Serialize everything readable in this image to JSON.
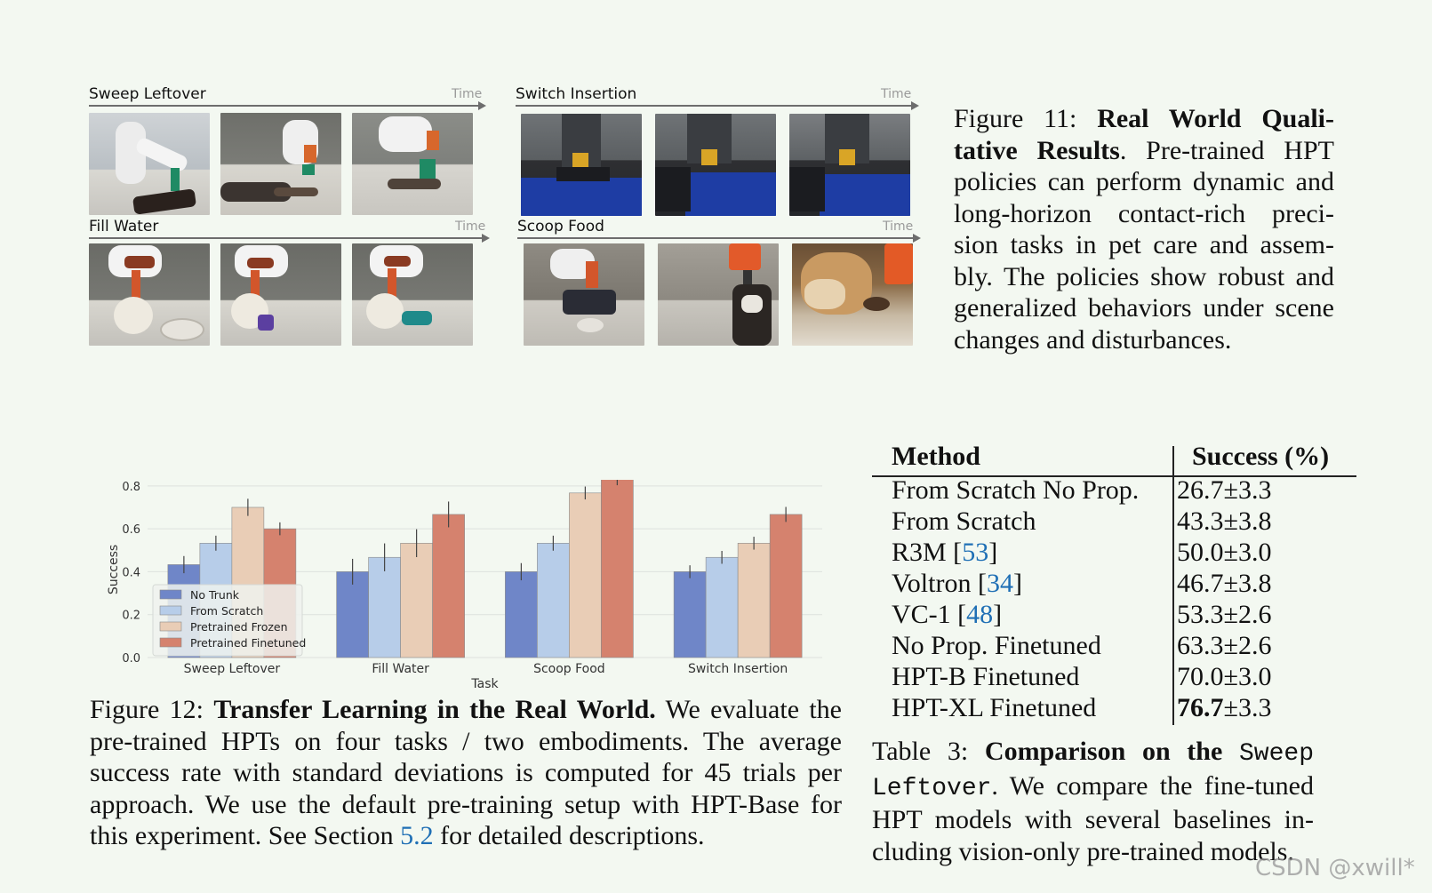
{
  "figure11": {
    "time_label": "Time",
    "tasks": [
      {
        "name": "Sweep Leftover"
      },
      {
        "name": "Switch Insertion"
      },
      {
        "name": "Fill Water"
      },
      {
        "name": "Scoop Food"
      }
    ],
    "caption": {
      "label": "Figure 11:",
      "title": "Real World Quali-tative Results",
      "text": ". Pre-trained HPT policies can perform dynamic and long-horizon contact-rich preci-sion tasks in pet care and assem-bly.  The policies show robust and generalized behaviors under scene changes and disturbances."
    }
  },
  "chart_data": {
    "type": "bar",
    "xlabel": "Task",
    "ylabel": "Success",
    "ylim": [
      0,
      0.82
    ],
    "yticks": [
      "0.0",
      "0.2",
      "0.4",
      "0.6",
      "0.8"
    ],
    "grid": true,
    "legend_position": "lower-left",
    "categories": [
      "Sweep Leftover",
      "Fill Water",
      "Scoop Food",
      "Switch Insertion"
    ],
    "series": [
      {
        "name": "No Trunk",
        "color": "#6f86c8",
        "values": [
          0.433,
          0.4,
          0.4,
          0.4
        ],
        "errors": [
          0.04,
          0.06,
          0.04,
          0.03
        ]
      },
      {
        "name": "From Scratch",
        "color": "#b7cde9",
        "values": [
          0.533,
          0.467,
          0.533,
          0.467
        ],
        "errors": [
          0.035,
          0.065,
          0.035,
          0.03
        ]
      },
      {
        "name": "Pretrained Frozen",
        "color": "#e9cdb6",
        "values": [
          0.7,
          0.533,
          0.767,
          0.533
        ],
        "errors": [
          0.04,
          0.065,
          0.03,
          0.03
        ]
      },
      {
        "name": "Pretrained Finetuned",
        "color": "#d5826e",
        "values": [
          0.6,
          0.667,
          0.833,
          0.667
        ],
        "errors": [
          0.03,
          0.06,
          0.03,
          0.035
        ]
      }
    ]
  },
  "figure12": {
    "caption": {
      "label": "Figure 12:",
      "title": "Transfer Learning in the Real World.",
      "text_before_link": " We evaluate the pre-trained HPTs on four tasks / two embodiments.  The average success rate with standard deviations is computed for 45 trials per approach. We use the default pre-training setup with HPT-Base for this experiment. See Section ",
      "link": "5.2",
      "text_after_link": " for detailed descriptions."
    }
  },
  "table3": {
    "headers": [
      "Method",
      "Success (%)"
    ],
    "rows": [
      {
        "method": "From Scratch No Prop.",
        "ref": "",
        "success": "26.7±3.3",
        "bold_main": ""
      },
      {
        "method": "From Scratch",
        "ref": "",
        "success": "43.3±3.8",
        "bold_main": ""
      },
      {
        "method": "R3M [",
        "ref": "53",
        "close": "]",
        "success": "50.0±3.0",
        "bold_main": ""
      },
      {
        "method": "Voltron [",
        "ref": "34",
        "close": "]",
        "success": "46.7±3.8",
        "bold_main": ""
      },
      {
        "method": "VC-1 [",
        "ref": "48",
        "close": "]",
        "success": "53.3±2.6",
        "bold_main": ""
      },
      {
        "method": "No Prop. Finetuned",
        "ref": "",
        "success": "63.3±2.6",
        "bold_main": ""
      },
      {
        "method": "HPT-B Finetuned",
        "ref": "",
        "success": "70.0±3.0",
        "bold_main": ""
      },
      {
        "method": "HPT-XL Finetuned",
        "ref": "",
        "success": "±3.3",
        "bold_main": "76.7"
      }
    ],
    "caption": {
      "label": "Table 3:",
      "title": "Comparison on the",
      "code": "Sweep Leftover",
      "text": ". We compare the fine-tuned HPT models with several baselines in-cluding vision-only pre-trained models."
    }
  },
  "watermark": "CSDN @xwill*"
}
